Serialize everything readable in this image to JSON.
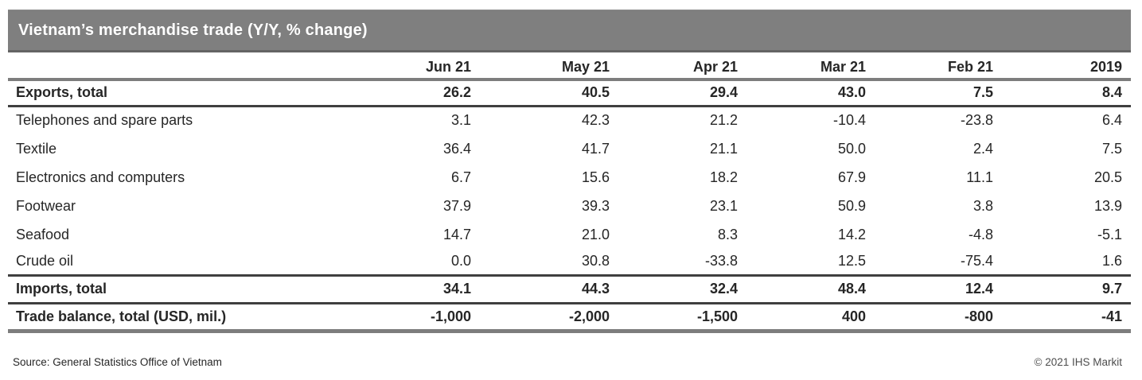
{
  "chart_data": {
    "type": "table",
    "title": "Vietnam’s merchandise trade (Y/Y, % change)",
    "columns": [
      "Jun 21",
      "May 21",
      "Apr 21",
      "Mar 21",
      "Feb 21",
      "2019"
    ],
    "rows": [
      {
        "label": "Exports, total",
        "emphasis": true,
        "values": [
          "26.2",
          "40.5",
          "29.4",
          "43.0",
          "7.5",
          "8.4"
        ]
      },
      {
        "label": "Telephones and spare parts",
        "emphasis": false,
        "values": [
          "3.1",
          "42.3",
          "21.2",
          "-10.4",
          "-23.8",
          "6.4"
        ]
      },
      {
        "label": "Textile",
        "emphasis": false,
        "values": [
          "36.4",
          "41.7",
          "21.1",
          "50.0",
          "2.4",
          "7.5"
        ]
      },
      {
        "label": "Electronics and computers",
        "emphasis": false,
        "values": [
          "6.7",
          "15.6",
          "18.2",
          "67.9",
          "11.1",
          "20.5"
        ]
      },
      {
        "label": "Footwear",
        "emphasis": false,
        "values": [
          "37.9",
          "39.3",
          "23.1",
          "50.9",
          "3.8",
          "13.9"
        ]
      },
      {
        "label": "Seafood",
        "emphasis": false,
        "values": [
          "14.7",
          "21.0",
          "8.3",
          "14.2",
          "-4.8",
          "-5.1"
        ]
      },
      {
        "label": "Crude oil",
        "emphasis": false,
        "values": [
          "0.0",
          "30.8",
          "-33.8",
          "12.5",
          "-75.4",
          "1.6"
        ]
      },
      {
        "label": "Imports, total",
        "emphasis": true,
        "values": [
          "34.1",
          "44.3",
          "32.4",
          "48.4",
          "12.4",
          "9.7"
        ]
      },
      {
        "label": "Trade balance, total (USD, mil.)",
        "emphasis": true,
        "values": [
          "-1,000",
          "-2,000",
          "-1,500",
          "400",
          "-800",
          "-41"
        ]
      }
    ],
    "source": "Source: General Statistics Office of Vietnam",
    "copyright": "© 2021 IHS Markit"
  },
  "colors": {
    "title_bar_bg": "#7f7f7f",
    "title_text": "#ffffff",
    "body_text": "#262626",
    "gray_rule": "#7d7d7d",
    "dark_rule": "#3f3f3f"
  }
}
